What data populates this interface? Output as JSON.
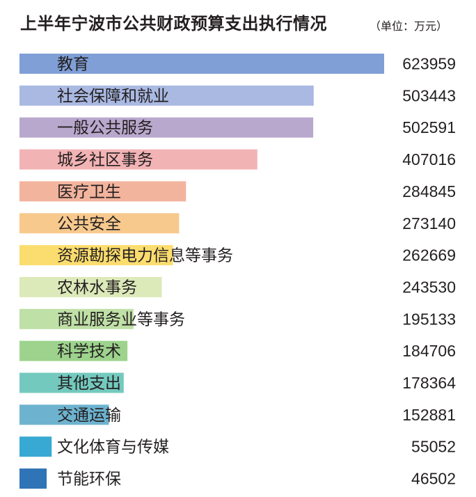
{
  "header": {
    "title": "上半年宁波市公共财政预算支出执行情况",
    "unit": "（单位：万元）"
  },
  "chart_data": {
    "type": "bar",
    "orientation": "horizontal",
    "title": "上半年宁波市公共财政预算支出执行情况",
    "unit": "（单位：万元）",
    "categories": [
      "教育",
      "社会保障和就业",
      "一般公共服务",
      "城乡社区事务",
      "医疗卫生",
      "公共安全",
      "资源勘探电力信息等事务",
      "农林水事务",
      "商业服务业等事务",
      "科学技术",
      "其他支出",
      "交通运输",
      "文化体育与传媒",
      "节能环保"
    ],
    "values": [
      623959,
      503443,
      502591,
      407016,
      284845,
      273140,
      262669,
      243530,
      195133,
      184706,
      178364,
      152881,
      55052,
      46502
    ],
    "value_labels": [
      "623959",
      "503443",
      "502591",
      "407016",
      "284845",
      "273140",
      "262669",
      "243530",
      "195133",
      "184706",
      "178364",
      "152881",
      "55052",
      "46502"
    ],
    "colors": [
      "#7f9fd6",
      "#a9b9e2",
      "#b9a8cd",
      "#f2b3b5",
      "#f3b49e",
      "#f7c98d",
      "#fbdc6e",
      "#dce9b9",
      "#bfe0a6",
      "#9dd38d",
      "#74c9be",
      "#6db3cf",
      "#38a9d2",
      "#2f74b6"
    ],
    "grid": false,
    "legend": "none"
  }
}
